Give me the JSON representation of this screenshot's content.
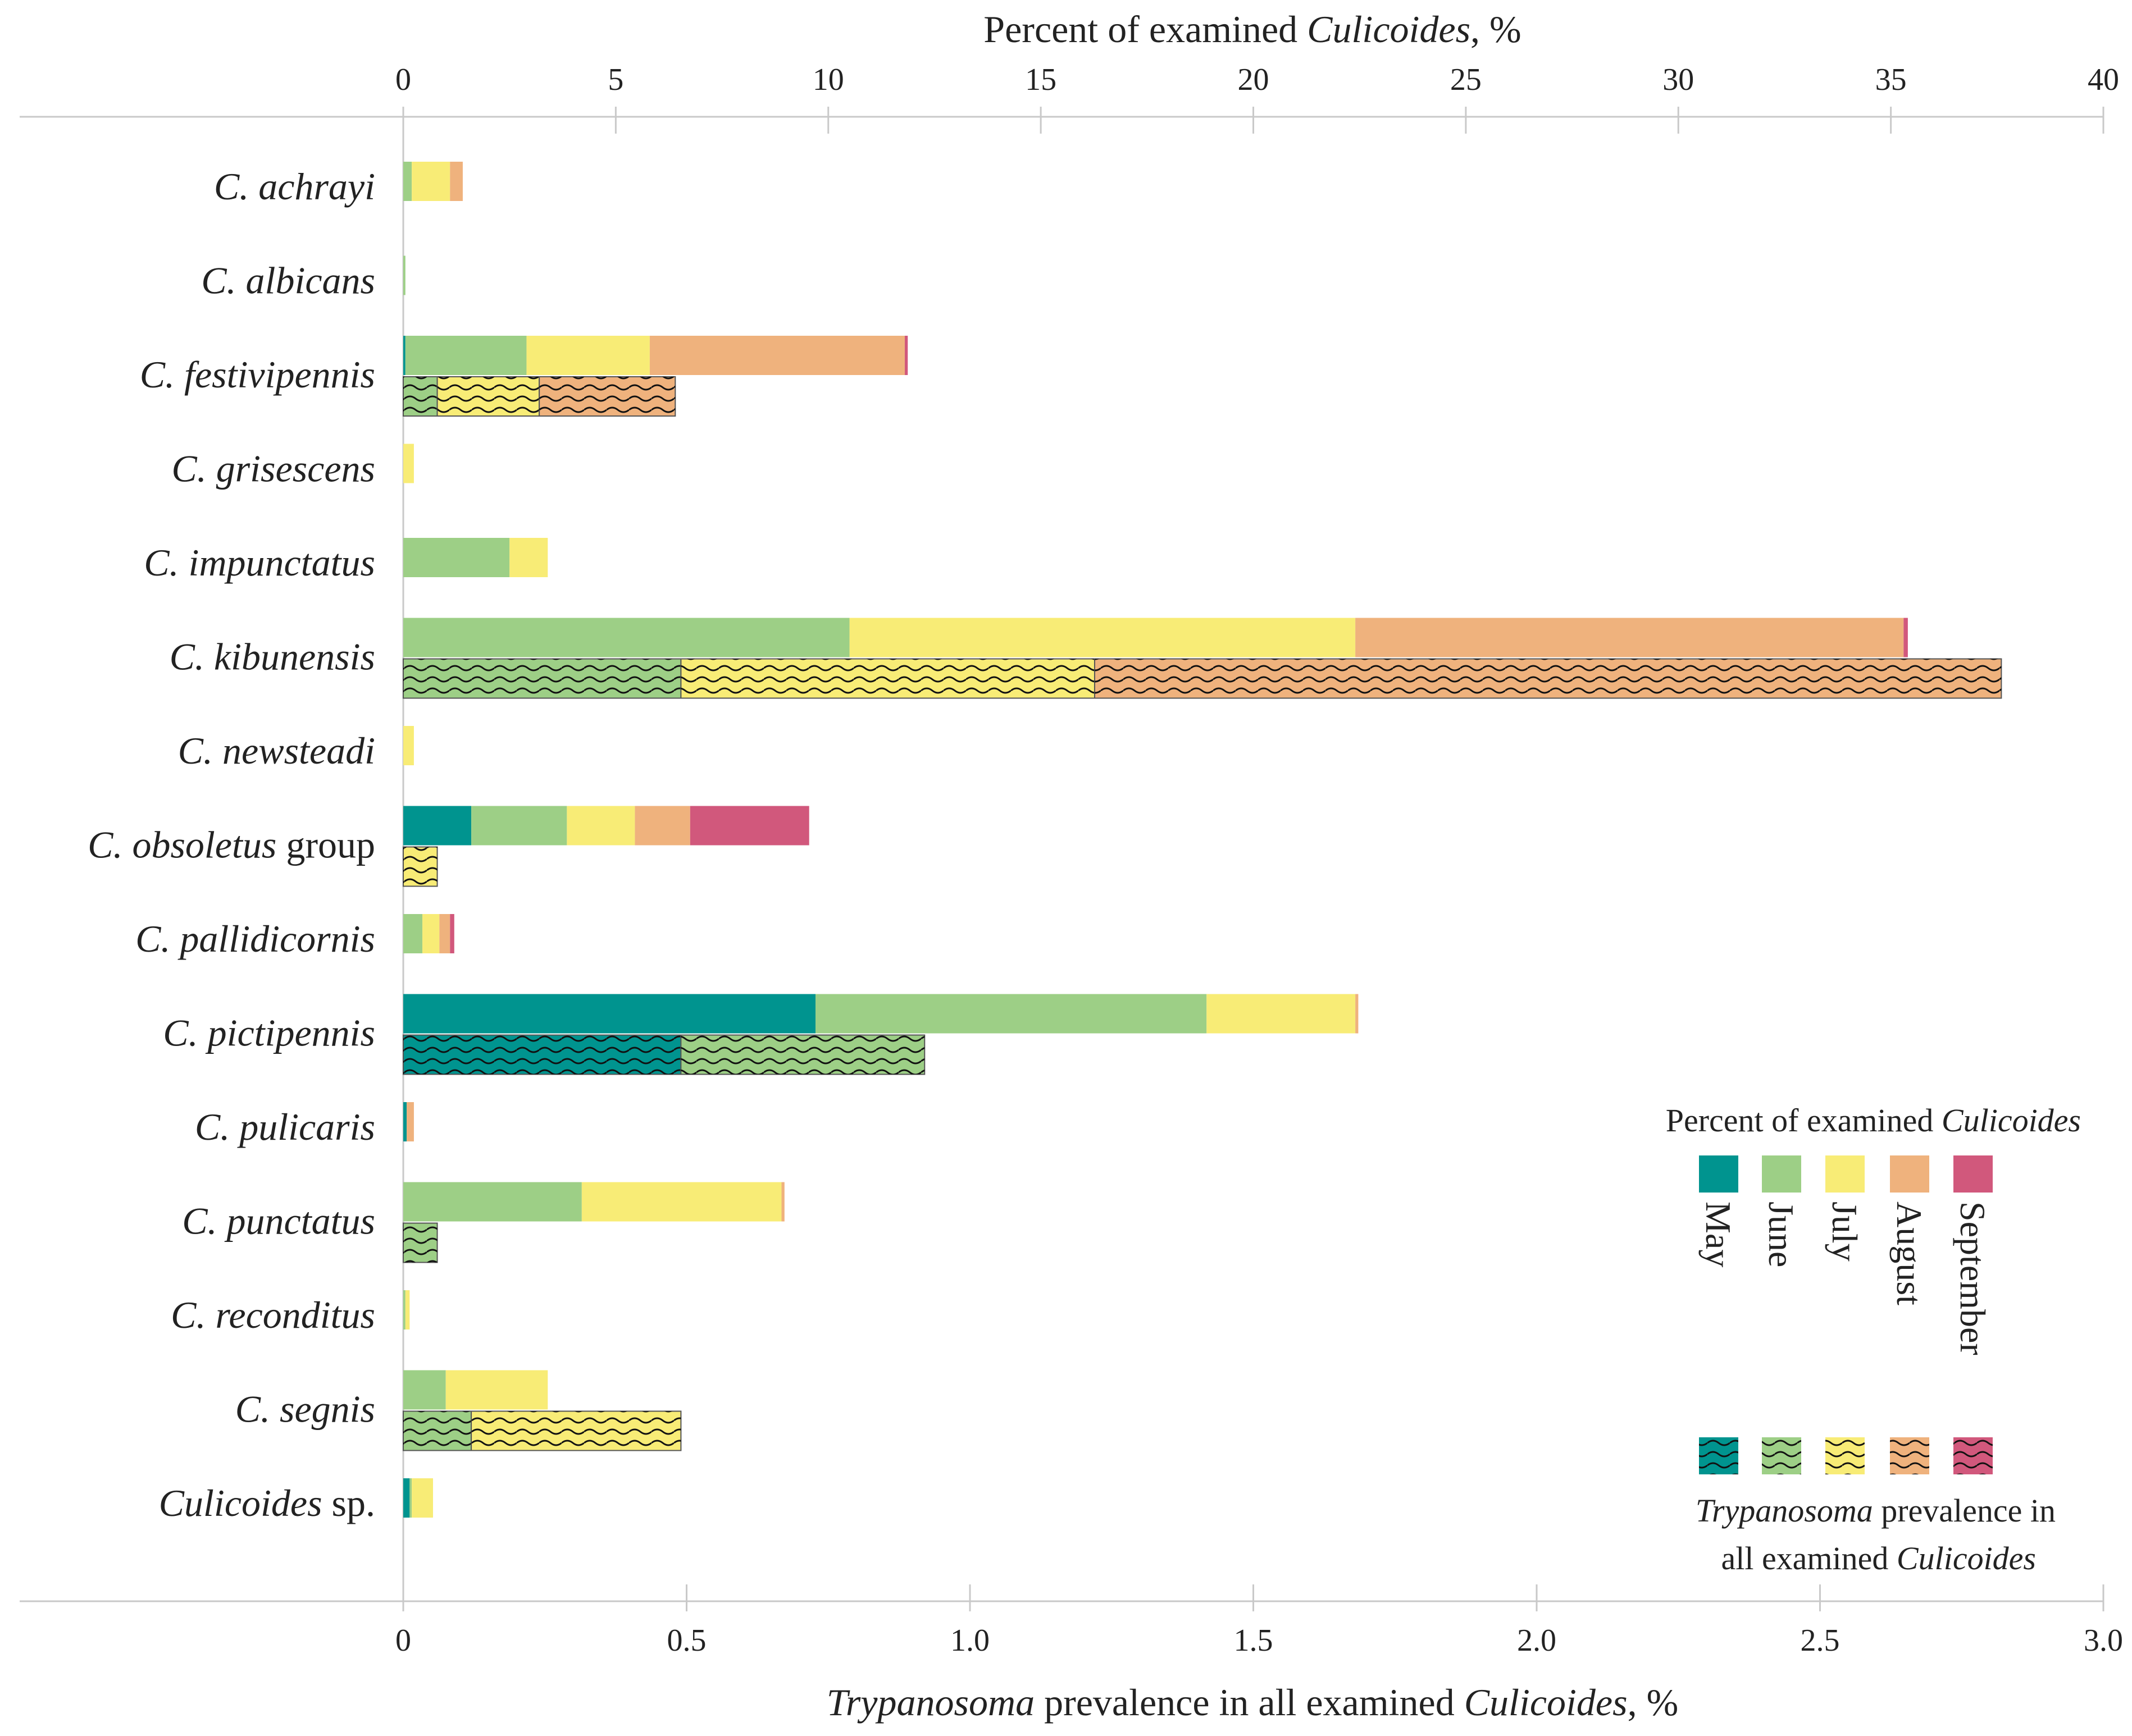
{
  "chart_data": {
    "type": "bar",
    "orientation": "horizontal",
    "stacked": true,
    "top_axis": {
      "label_main": "Percent of examined ",
      "label_italic": "Culicoides",
      "label_tail": ", %",
      "range": [
        0,
        40
      ],
      "ticks": [
        0,
        5,
        10,
        15,
        20,
        25,
        30,
        35,
        40
      ]
    },
    "bottom_axis": {
      "label_italic": "Trypanosoma",
      "label_main": " prevalence in all examined ",
      "label_italic2": "Culicoides",
      "label_tail": ", %",
      "range": [
        0,
        3
      ],
      "ticks": [
        "0",
        "0.5",
        "1.0",
        "1.5",
        "2.0",
        "2.5",
        "3.0"
      ]
    },
    "months": [
      {
        "name": "May",
        "color": "#00948f"
      },
      {
        "name": "June",
        "color": "#9dcf86"
      },
      {
        "name": "July",
        "color": "#f8ec76"
      },
      {
        "name": "August",
        "color": "#efb27d"
      },
      {
        "name": "September",
        "color": "#d1587c"
      }
    ],
    "species": [
      {
        "italic": "C. achrayi",
        "suffix": "",
        "percent": [
          0,
          0.2,
          0.9,
          0.3,
          0
        ],
        "prevalence": null
      },
      {
        "italic": "C. albicans",
        "suffix": "",
        "percent": [
          0,
          0.05,
          0,
          0,
          0
        ],
        "prevalence": null
      },
      {
        "italic": "C. festivipennis",
        "suffix": "",
        "percent": [
          0.05,
          2.85,
          2.9,
          6.0,
          0.07
        ],
        "prevalence": [
          0,
          0.06,
          0.18,
          0.24,
          0
        ]
      },
      {
        "italic": "C. grisescens",
        "suffix": "",
        "percent": [
          0,
          0,
          0.25,
          0,
          0
        ],
        "prevalence": null
      },
      {
        "italic": "C. impunctatus",
        "suffix": "",
        "percent": [
          0,
          2.5,
          0.9,
          0,
          0
        ],
        "prevalence": null
      },
      {
        "italic": "C. kibunensis",
        "suffix": "",
        "percent": [
          0,
          10.5,
          11.9,
          12.9,
          0.1
        ],
        "prevalence": [
          0,
          0.49,
          0.73,
          1.6,
          0
        ]
      },
      {
        "italic": "C. newsteadi",
        "suffix": "",
        "percent": [
          0,
          0,
          0.25,
          0,
          0
        ],
        "prevalence": null
      },
      {
        "italic": "C. obsoletus",
        "suffix": " group",
        "percent": [
          1.6,
          2.25,
          1.6,
          1.3,
          2.8
        ],
        "prevalence": [
          0,
          0,
          0.06,
          0,
          0
        ]
      },
      {
        "italic": "C. pallidicornis",
        "suffix": "",
        "percent": [
          0,
          0.45,
          0.4,
          0.25,
          0.1
        ],
        "prevalence": null
      },
      {
        "italic": "C. pictipennis",
        "suffix": "",
        "percent": [
          9.7,
          9.2,
          3.5,
          0.07,
          0
        ],
        "prevalence": [
          0.49,
          0.43,
          0,
          0,
          0
        ]
      },
      {
        "italic": "C. pulicaris",
        "suffix": "",
        "percent": [
          0.08,
          0,
          0,
          0.17,
          0
        ],
        "prevalence": null
      },
      {
        "italic": "C. punctatus",
        "suffix": "",
        "percent": [
          0,
          4.2,
          4.7,
          0.07,
          0
        ],
        "prevalence": [
          0,
          0.06,
          0,
          0,
          0
        ]
      },
      {
        "italic": "C. reconditus",
        "suffix": "",
        "percent": [
          0,
          0.05,
          0.1,
          0,
          0
        ],
        "prevalence": null
      },
      {
        "italic": "C. segnis",
        "suffix": "",
        "percent": [
          0,
          1.0,
          2.4,
          0,
          0
        ],
        "prevalence": [
          0,
          0.12,
          0.37,
          0,
          0
        ]
      },
      {
        "italic": "Culicoides",
        "suffix": " sp.",
        "percent": [
          0.15,
          0.05,
          0.5,
          0,
          0
        ],
        "prevalence": null
      }
    ],
    "legend": {
      "percent_title_main": "Percent of examined ",
      "percent_title_italic": "Culicoides",
      "prevalence_title_italic": "Trypanosoma",
      "prevalence_title_line1": " prevalence in",
      "prevalence_title_line2": "all examined ",
      "prevalence_title_line2_italic": "Culicoides",
      "placement": "bottom-right"
    }
  }
}
